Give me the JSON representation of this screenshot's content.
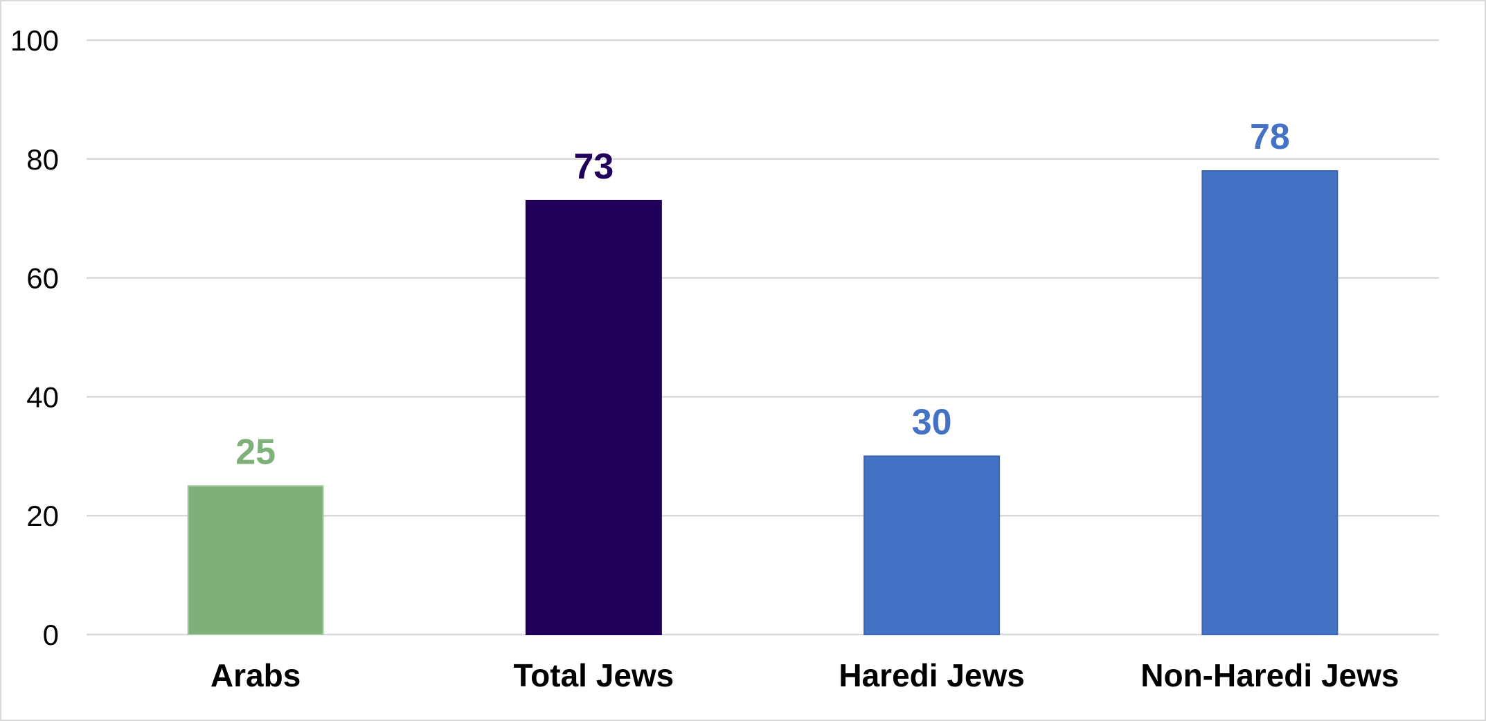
{
  "chart_data": {
    "type": "bar",
    "title": "",
    "xlabel": "",
    "ylabel": "",
    "categories": [
      "Arabs",
      "Total Jews",
      "Haredi Jews",
      "Non-Haredi Jews"
    ],
    "values": [
      25,
      73,
      30,
      78
    ],
    "colors": [
      "#7fb07a",
      "#20005a",
      "#4472c4",
      "#4472c4"
    ],
    "label_colors": [
      "#7fb07a",
      "#20005a",
      "#4472c4",
      "#4472c4"
    ],
    "ylim": [
      0,
      100
    ],
    "yticks": [
      0,
      20,
      40,
      60,
      80,
      100
    ],
    "grid": true,
    "legend": "none"
  }
}
